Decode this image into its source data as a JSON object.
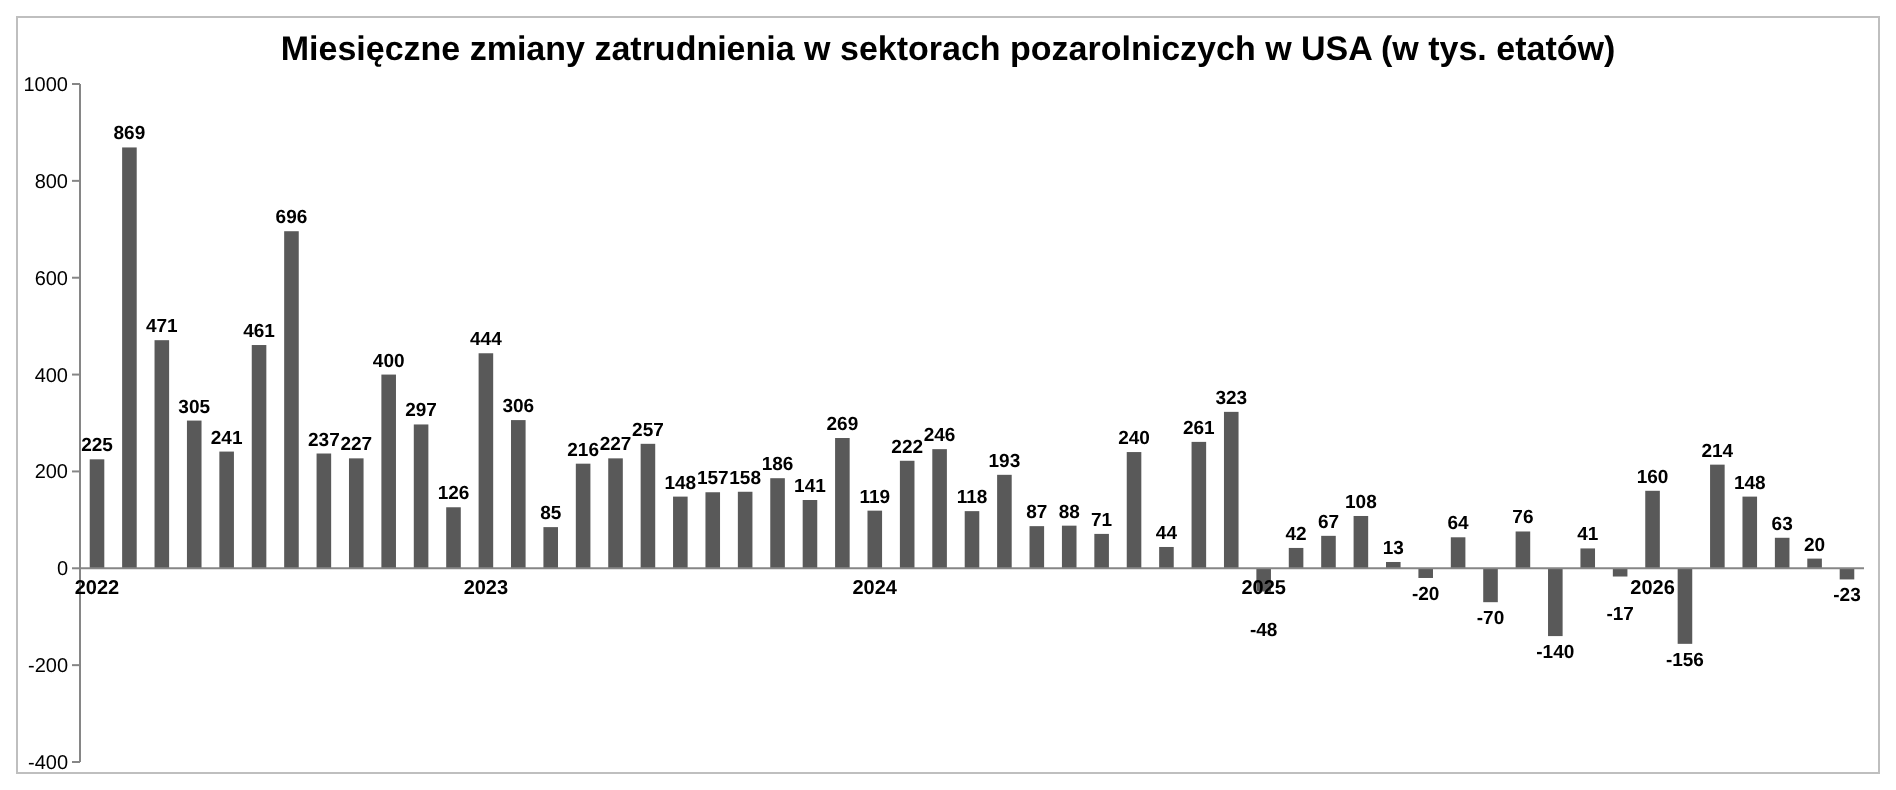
{
  "chart_data": {
    "type": "bar",
    "title": "Miesięczne zmiany zatrudnienia w sektorach pozarolniczych w USA (w tys. etatów)",
    "categories": [
      "2022",
      null,
      null,
      null,
      null,
      null,
      null,
      null,
      null,
      null,
      null,
      null,
      "2023",
      null,
      null,
      null,
      null,
      null,
      null,
      null,
      null,
      null,
      null,
      null,
      "2024",
      null,
      null,
      null,
      null,
      null,
      null,
      null,
      null,
      null,
      null,
      null,
      "2025",
      null,
      null,
      null,
      null,
      null,
      null,
      null,
      null,
      null,
      null,
      null,
      "2026",
      null,
      null,
      null,
      null,
      null,
      null
    ],
    "values": [
      225,
      869,
      471,
      305,
      241,
      461,
      696,
      237,
      227,
      400,
      297,
      126,
      444,
      306,
      85,
      216,
      227,
      257,
      148,
      157,
      158,
      186,
      141,
      269,
      119,
      222,
      246,
      118,
      193,
      87,
      88,
      71,
      240,
      44,
      261,
      323,
      -48,
      42,
      67,
      108,
      13,
      -20,
      64,
      -70,
      76,
      -140,
      41,
      -17,
      160,
      -156,
      214,
      148,
      63,
      20,
      -23
    ],
    "color": "#595959",
    "ylim": [
      -400,
      1000
    ],
    "yticks": [
      -400,
      -200,
      0,
      200,
      400,
      600,
      800,
      1000
    ],
    "data_labels": true,
    "grid": false
  }
}
